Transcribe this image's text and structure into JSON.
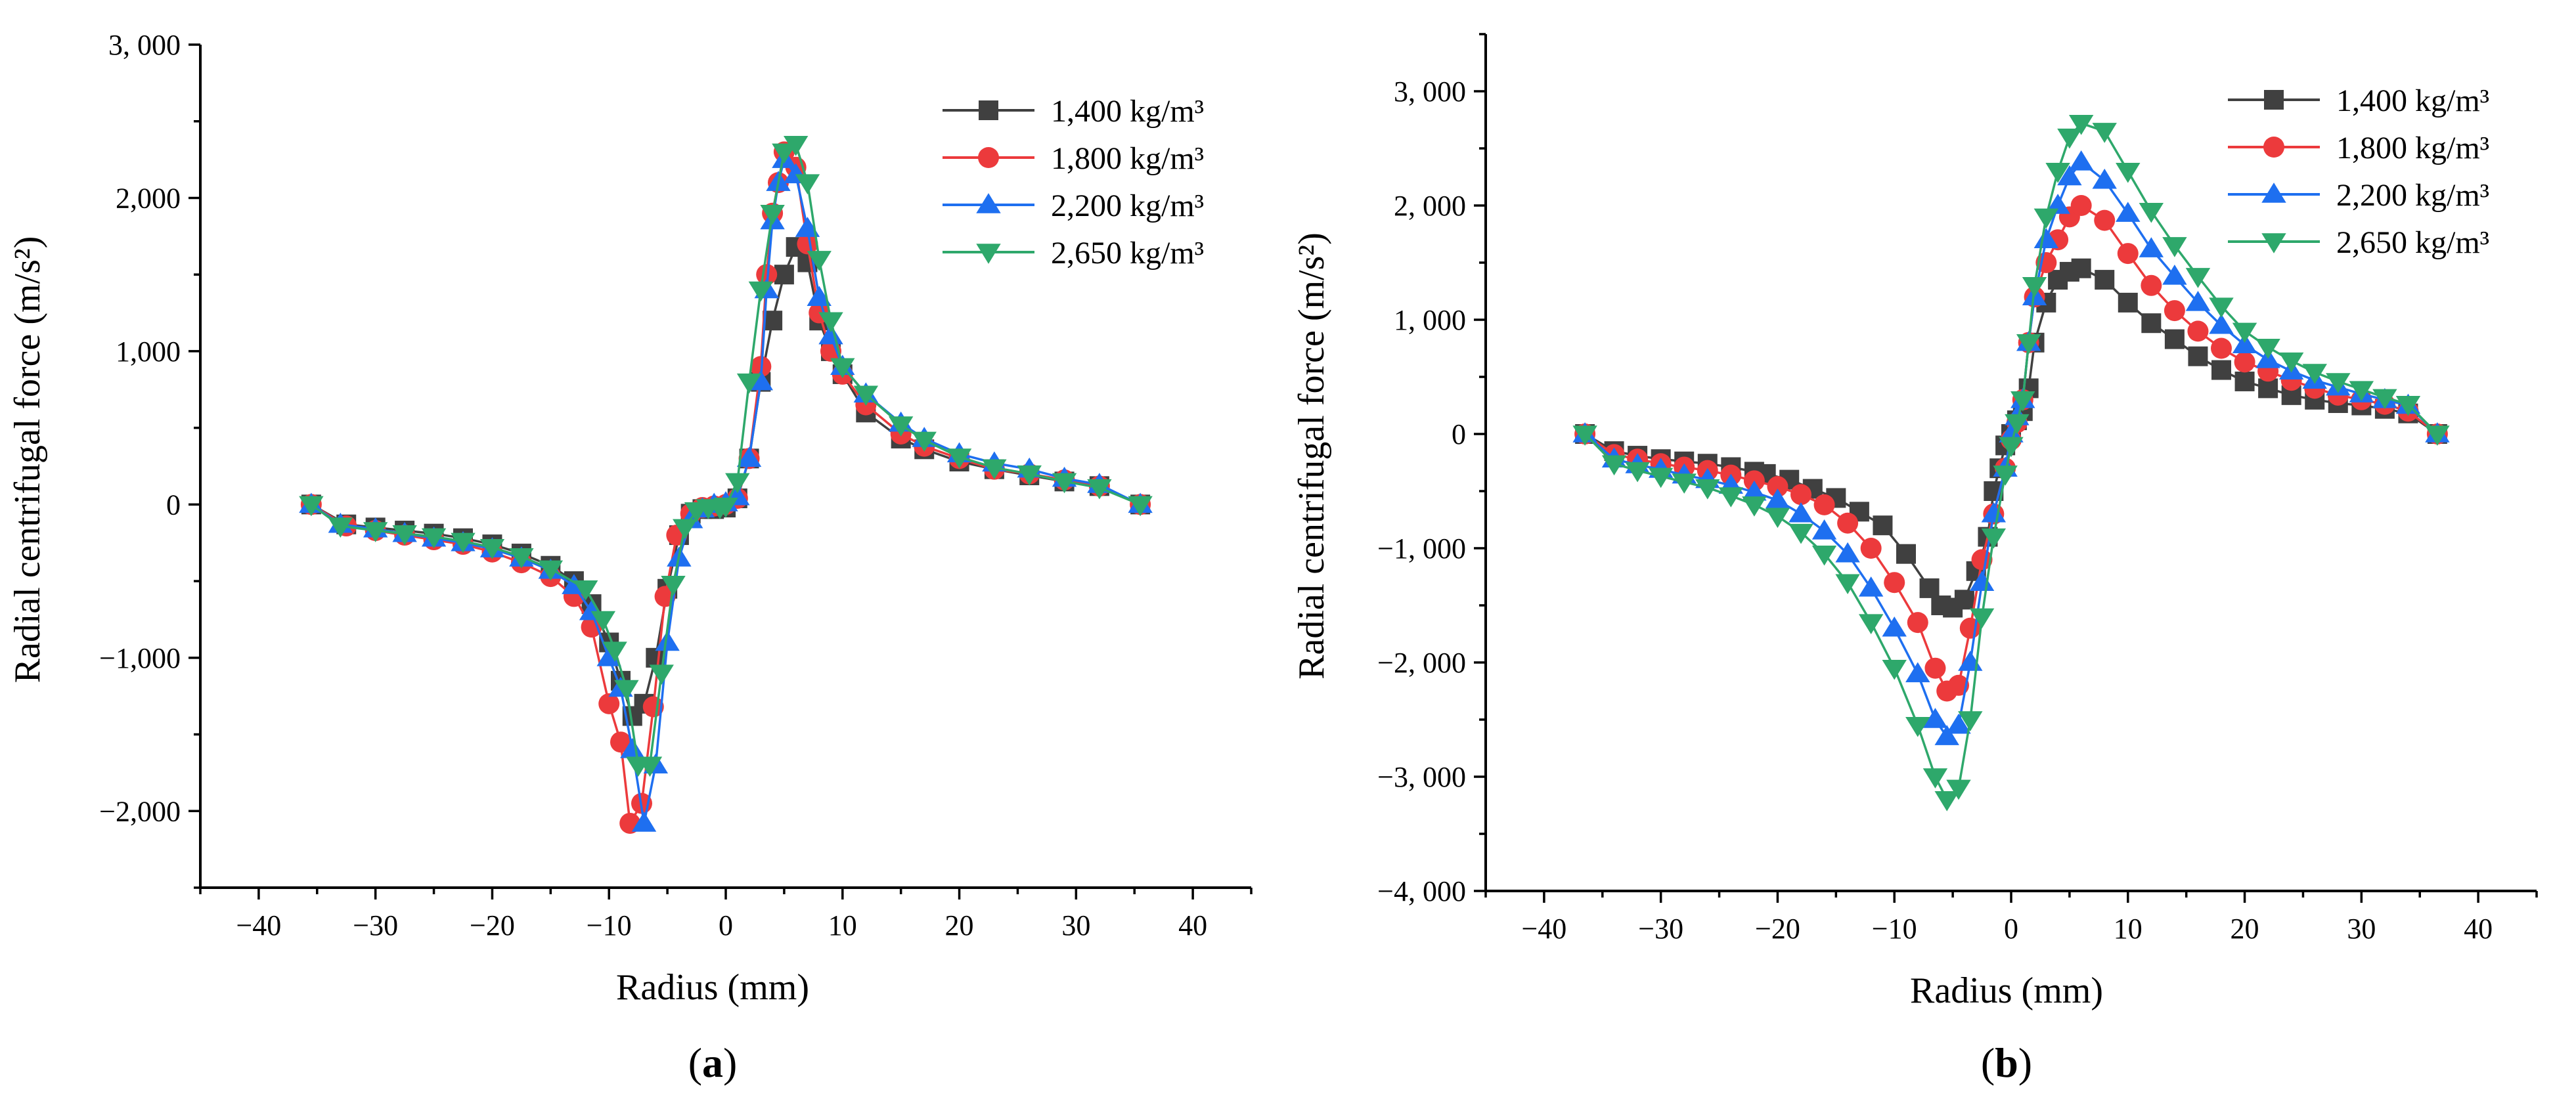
{
  "colors": {
    "s1400": "#404040",
    "s1800": "#ec3a3c",
    "s2200": "#1e6ff0",
    "s2650": "#2ea86b"
  },
  "chart_data": [
    {
      "type": "line",
      "panel_label": "(a)",
      "panel_letter": "a",
      "xlabel": "Radius (mm)",
      "ylabel": "Radial centrifugal force (m/s²)",
      "xlim": [
        -45,
        45
      ],
      "ylim": [
        -2500,
        3000
      ],
      "xticks": [
        -40,
        -30,
        -20,
        -10,
        0,
        10,
        20,
        30,
        40
      ],
      "yticks": [
        -2000,
        -1000,
        0,
        1000,
        2000,
        3000
      ],
      "ytick_labels": [
        "−2,000",
        "−1,000",
        "0",
        "1,000",
        "2,000",
        "3, 000"
      ],
      "legend_position": "top-right",
      "series": [
        {
          "name": "1,400 kg/m³",
          "marker": "square",
          "color_key": "s1400",
          "x": [
            -35.5,
            -32.5,
            -30,
            -27.5,
            -25,
            -22.5,
            -20,
            -17.5,
            -15,
            -13,
            -11.5,
            -10,
            -9,
            -8,
            -7,
            -6,
            -5,
            -4,
            -3,
            -2,
            -1,
            0,
            1,
            2,
            3,
            4,
            5,
            6,
            7,
            8,
            9,
            10,
            12,
            15,
            17,
            20,
            23,
            26,
            29,
            32,
            35.5
          ],
          "y": [
            0,
            -130,
            -150,
            -170,
            -190,
            -220,
            -260,
            -320,
            -400,
            -500,
            -650,
            -900,
            -1150,
            -1380,
            -1300,
            -1000,
            -550,
            -200,
            -60,
            -30,
            -30,
            -20,
            40,
            300,
            800,
            1200,
            1500,
            1680,
            1580,
            1200,
            1000,
            850,
            600,
            430,
            360,
            280,
            230,
            190,
            150,
            120,
            0
          ]
        },
        {
          "name": "1,800 kg/m³",
          "marker": "circle",
          "color_key": "s1800",
          "x": [
            -35.5,
            -32.5,
            -30,
            -27.5,
            -25,
            -22.5,
            -20,
            -17.5,
            -15,
            -13,
            -11.5,
            -10,
            -9,
            -8.2,
            -7.2,
            -6.2,
            -5.2,
            -4.2,
            -3,
            -2,
            -1,
            0,
            1,
            2,
            3,
            3.5,
            4,
            4.5,
            5,
            6,
            7,
            8,
            9,
            10,
            12,
            15,
            17,
            20,
            23,
            26,
            29,
            32,
            35.5
          ],
          "y": [
            0,
            -140,
            -170,
            -200,
            -230,
            -260,
            -310,
            -380,
            -470,
            -600,
            -800,
            -1300,
            -1550,
            -2080,
            -1950,
            -1320,
            -600,
            -200,
            -60,
            -20,
            -10,
            0,
            40,
            300,
            900,
            1500,
            1900,
            2100,
            2300,
            2200,
            1700,
            1250,
            1000,
            850,
            650,
            460,
            380,
            300,
            230,
            200,
            160,
            120,
            0
          ]
        },
        {
          "name": "2,200 kg/m³",
          "marker": "triangle-up",
          "color_key": "s2200",
          "x": [
            -35.5,
            -33,
            -30,
            -27.5,
            -25,
            -22.5,
            -20,
            -17.5,
            -15,
            -13,
            -11.5,
            -10,
            -9,
            -8,
            -7,
            -6,
            -5,
            -4,
            -3,
            -2,
            -1,
            0,
            1,
            2,
            3,
            3.5,
            4,
            4.5,
            5,
            6,
            7,
            8,
            9,
            10,
            12,
            15,
            17,
            20,
            23,
            26,
            29,
            32,
            35.5
          ],
          "y": [
            0,
            -130,
            -160,
            -190,
            -220,
            -250,
            -290,
            -350,
            -430,
            -530,
            -700,
            -1000,
            -1200,
            -1600,
            -2080,
            -1700,
            -900,
            -350,
            -100,
            -30,
            0,
            10,
            50,
            300,
            800,
            1400,
            1850,
            2100,
            2250,
            2150,
            1800,
            1350,
            1100,
            900,
            720,
            530,
            430,
            330,
            270,
            230,
            170,
            130,
            0
          ]
        },
        {
          "name": "2,650 kg/m³",
          "marker": "triangle-down",
          "color_key": "s2650",
          "x": [
            -35.5,
            -33,
            -30,
            -27.5,
            -25,
            -22.5,
            -20,
            -17.5,
            -15,
            -12,
            -10.5,
            -9.5,
            -8.5,
            -7.5,
            -6.5,
            -5.5,
            -4.5,
            -3.5,
            -2.5,
            -1.5,
            -0.5,
            0,
            1,
            2,
            3,
            4,
            5,
            6,
            7,
            8,
            9,
            10,
            12,
            15,
            17,
            20,
            23,
            26,
            29,
            32,
            35.5
          ],
          "y": [
            0,
            -140,
            -170,
            -190,
            -210,
            -240,
            -280,
            -340,
            -420,
            -550,
            -750,
            -950,
            -1200,
            -1700,
            -1700,
            -1100,
            -520,
            -150,
            -40,
            -20,
            -20,
            -10,
            150,
            800,
            1400,
            1900,
            2300,
            2350,
            2100,
            1600,
            1200,
            900,
            720,
            520,
            420,
            310,
            240,
            200,
            150,
            110,
            0
          ]
        }
      ]
    },
    {
      "type": "line",
      "panel_label": "(b)",
      "panel_letter": "b",
      "xlabel": "Radius (mm)",
      "ylabel": "Radial centrifugal force (m/s²)",
      "xlim": [
        -45,
        45
      ],
      "ylim": [
        -4000,
        3500
      ],
      "xticks": [
        -40,
        -30,
        -20,
        -10,
        0,
        10,
        20,
        30,
        40
      ],
      "yticks": [
        -4000,
        -3000,
        -2000,
        -1000,
        0,
        1000,
        2000,
        3000
      ],
      "ytick_labels": [
        "−4, 000",
        "−3, 000",
        "−2, 000",
        "−1, 000",
        "0",
        "1, 000",
        "2, 000",
        "3, 000"
      ],
      "legend_position": "top-right",
      "series": [
        {
          "name": "1,400 kg/m³",
          "marker": "square",
          "color_key": "s1400",
          "x": [
            -36.5,
            -34,
            -32,
            -30,
            -28,
            -26,
            -24,
            -22,
            -21,
            -19,
            -17,
            -15,
            -13,
            -11,
            -9,
            -7,
            -6,
            -5,
            -4,
            -3,
            -2,
            -1.5,
            -1,
            -0.5,
            0,
            0.5,
            1,
            1.5,
            2,
            3,
            4,
            5,
            6,
            8,
            10,
            12,
            14,
            16,
            18,
            20,
            22,
            24,
            26,
            28,
            30,
            32,
            34,
            36.5
          ],
          "y": [
            0,
            -150,
            -190,
            -220,
            -240,
            -260,
            -290,
            -330,
            -350,
            -400,
            -480,
            -560,
            -680,
            -800,
            -1050,
            -1350,
            -1500,
            -1520,
            -1450,
            -1200,
            -900,
            -500,
            -300,
            -100,
            0,
            120,
            200,
            400,
            800,
            1150,
            1350,
            1420,
            1450,
            1350,
            1150,
            970,
            830,
            680,
            560,
            460,
            400,
            340,
            300,
            270,
            250,
            220,
            180,
            0
          ]
        },
        {
          "name": "1,800 kg/m³",
          "marker": "circle",
          "color_key": "s1800",
          "x": [
            -36.5,
            -34,
            -32,
            -30,
            -28,
            -26,
            -24,
            -22,
            -20,
            -18,
            -16,
            -14,
            -12,
            -10,
            -8,
            -6.5,
            -5.5,
            -4.5,
            -3.5,
            -2.5,
            -1.5,
            -0.5,
            0,
            0.5,
            1,
            1.5,
            2,
            3,
            4,
            5,
            6,
            8,
            10,
            12,
            14,
            16,
            18,
            20,
            22,
            24,
            26,
            28,
            30,
            32,
            34,
            36.5
          ],
          "y": [
            0,
            -180,
            -220,
            -260,
            -290,
            -320,
            -360,
            -410,
            -460,
            -530,
            -620,
            -780,
            -1000,
            -1300,
            -1650,
            -2050,
            -2250,
            -2200,
            -1700,
            -1100,
            -700,
            -300,
            -50,
            100,
            300,
            800,
            1200,
            1500,
            1700,
            1900,
            2000,
            1870,
            1580,
            1300,
            1080,
            900,
            750,
            630,
            550,
            470,
            400,
            340,
            300,
            260,
            200,
            0
          ]
        },
        {
          "name": "2,200 kg/m³",
          "marker": "triangle-up",
          "color_key": "s2200",
          "x": [
            -36.5,
            -34,
            -32,
            -30,
            -28,
            -26,
            -24,
            -22,
            -20,
            -18,
            -16,
            -14,
            -12,
            -10,
            -8,
            -6.5,
            -5.5,
            -4.5,
            -3.5,
            -2.5,
            -1.5,
            -0.5,
            0,
            0.5,
            1,
            1.5,
            2,
            3,
            4,
            5,
            6,
            8,
            10,
            12,
            14,
            16,
            18,
            20,
            22,
            24,
            26,
            28,
            30,
            32,
            34,
            36.5
          ],
          "y": [
            0,
            -220,
            -270,
            -310,
            -360,
            -400,
            -450,
            -510,
            -580,
            -700,
            -850,
            -1050,
            -1350,
            -1700,
            -2100,
            -2500,
            -2650,
            -2550,
            -2000,
            -1300,
            -700,
            -300,
            0,
            150,
            300,
            800,
            1200,
            1700,
            2000,
            2250,
            2380,
            2220,
            1930,
            1620,
            1380,
            1150,
            950,
            780,
            650,
            550,
            470,
            410,
            350,
            300,
            250,
            0
          ]
        },
        {
          "name": "2,650 kg/m³",
          "marker": "triangle-down",
          "color_key": "s2650",
          "x": [
            -36.5,
            -34,
            -32,
            -30,
            -28,
            -26,
            -24,
            -22,
            -20,
            -18,
            -16,
            -14,
            -12,
            -10,
            -8,
            -6.5,
            -5.5,
            -4.5,
            -3.5,
            -2.5,
            -1.5,
            -0.5,
            0,
            0.5,
            1,
            1.5,
            2,
            3,
            4,
            5,
            6,
            8,
            10,
            12,
            14,
            16,
            18,
            20,
            22,
            24,
            26,
            28,
            30,
            32,
            34,
            36.5
          ],
          "y": [
            0,
            -260,
            -320,
            -370,
            -420,
            -470,
            -540,
            -620,
            -720,
            -860,
            -1050,
            -1300,
            -1650,
            -2050,
            -2550,
            -3000,
            -3200,
            -3100,
            -2500,
            -1600,
            -900,
            -350,
            -100,
            100,
            300,
            800,
            1300,
            1900,
            2300,
            2600,
            2720,
            2650,
            2300,
            1950,
            1650,
            1380,
            1120,
            900,
            760,
            640,
            540,
            460,
            390,
            320,
            260,
            0
          ]
        }
      ]
    }
  ]
}
